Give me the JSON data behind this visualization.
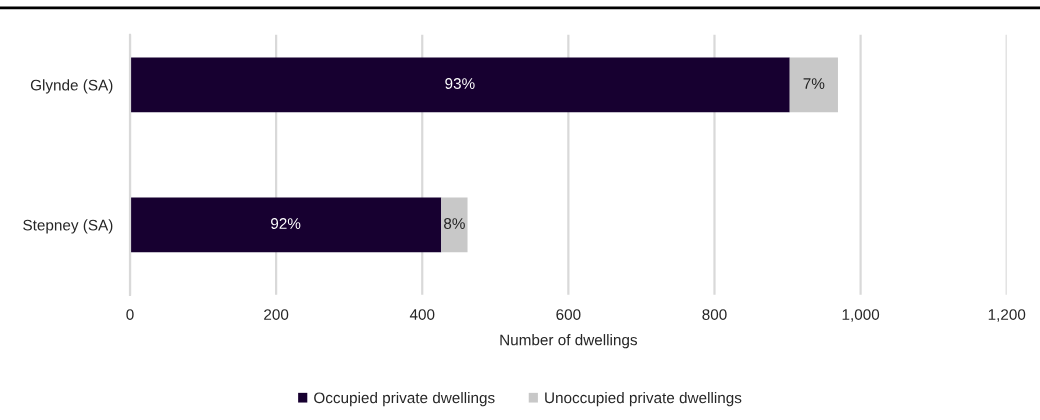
{
  "chart_data": {
    "type": "bar",
    "orientation": "horizontal",
    "stacked": true,
    "categories": [
      "Glynde (SA)",
      "Stepney (SA)"
    ],
    "series": [
      {
        "name": "Occupied private dwellings",
        "color": "#170030",
        "values": [
          903,
          426
        ]
      },
      {
        "name": "Unoccupied private dwellings",
        "color": "#c8c8c8",
        "values": [
          66,
          36
        ]
      }
    ],
    "annotations": [
      "93%",
      "7%",
      "92%",
      "8%"
    ],
    "xlabel": "Number of dwellings",
    "xlim": [
      0,
      1200
    ],
    "xticks": [
      0,
      200,
      400,
      600,
      800,
      {
        "value": 1000,
        "label": "1,000"
      },
      {
        "value": 1200,
        "label": "1,200"
      }
    ],
    "grid": "x",
    "legend": "bottom"
  }
}
